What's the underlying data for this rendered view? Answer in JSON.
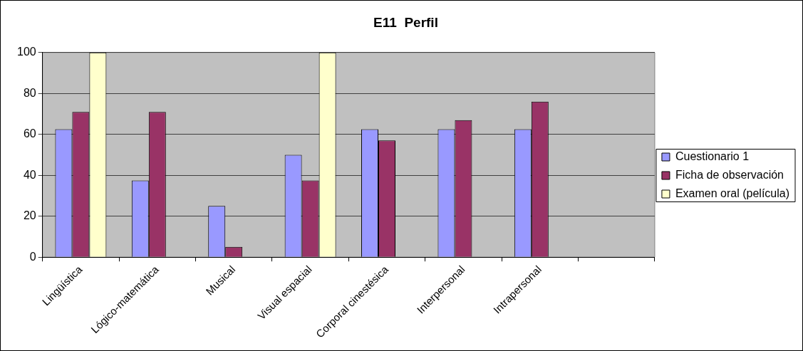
{
  "chart_data": {
    "type": "bar",
    "title": "E11  Perfil",
    "categories": [
      "Lingüística",
      "Lógico-matemática",
      "Musical",
      "Visual espacial",
      "Corporal cinestésica",
      "Interpersonal",
      "Intrapersonal",
      null
    ],
    "series": [
      {
        "name": "Cuestionario 1",
        "color": "#9999ff",
        "values": [
          62.5,
          37.5,
          25,
          50,
          62.5,
          62.5,
          62.5,
          null
        ]
      },
      {
        "name": "Ficha de observación",
        "color": "#993366",
        "values": [
          71,
          71,
          5,
          37.5,
          57,
          67,
          76,
          null
        ]
      },
      {
        "name": "Examen oral (película)",
        "color": "#ffffcc",
        "values": [
          100,
          null,
          null,
          100,
          null,
          null,
          null,
          null
        ]
      }
    ],
    "ylim": [
      0,
      100
    ],
    "yticks": [
      0,
      20,
      40,
      60,
      80,
      100
    ],
    "grid": "y",
    "legend": "right"
  }
}
